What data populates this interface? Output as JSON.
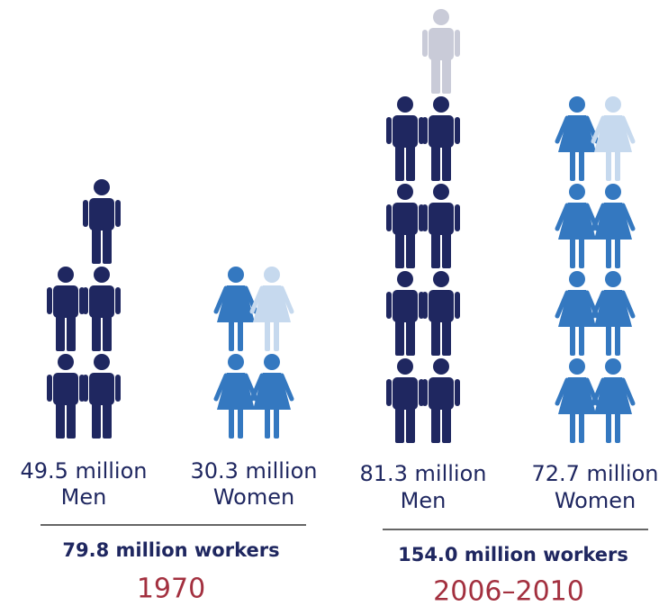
{
  "chart_data": {
    "type": "pictogram",
    "groups": [
      {
        "name": "1970",
        "total": 79.8,
        "total_label": "79.8 million workers",
        "series": [
          {
            "name": "Men",
            "icon": "man",
            "color": "#1f2760",
            "partial_color": "#c9cbd8",
            "value": 49.5,
            "value_label": "49.5 million"
          },
          {
            "name": "Women",
            "icon": "woman",
            "color": "#3478c0",
            "partial_color": "#c6d9ee",
            "value": 30.3,
            "value_label": "30.3 million"
          }
        ]
      },
      {
        "name": "2006–2010",
        "total": 154.0,
        "total_label": "154.0 million workers",
        "series": [
          {
            "name": "Men",
            "icon": "man",
            "color": "#1f2760",
            "partial_color": "#c9cbd8",
            "value": 81.3,
            "value_label": "81.3 million"
          },
          {
            "name": "Women",
            "icon": "woman",
            "color": "#3478c0",
            "partial_color": "#c6d9ee",
            "value": 72.7,
            "value_label": "72.7 million"
          }
        ]
      }
    ]
  }
}
